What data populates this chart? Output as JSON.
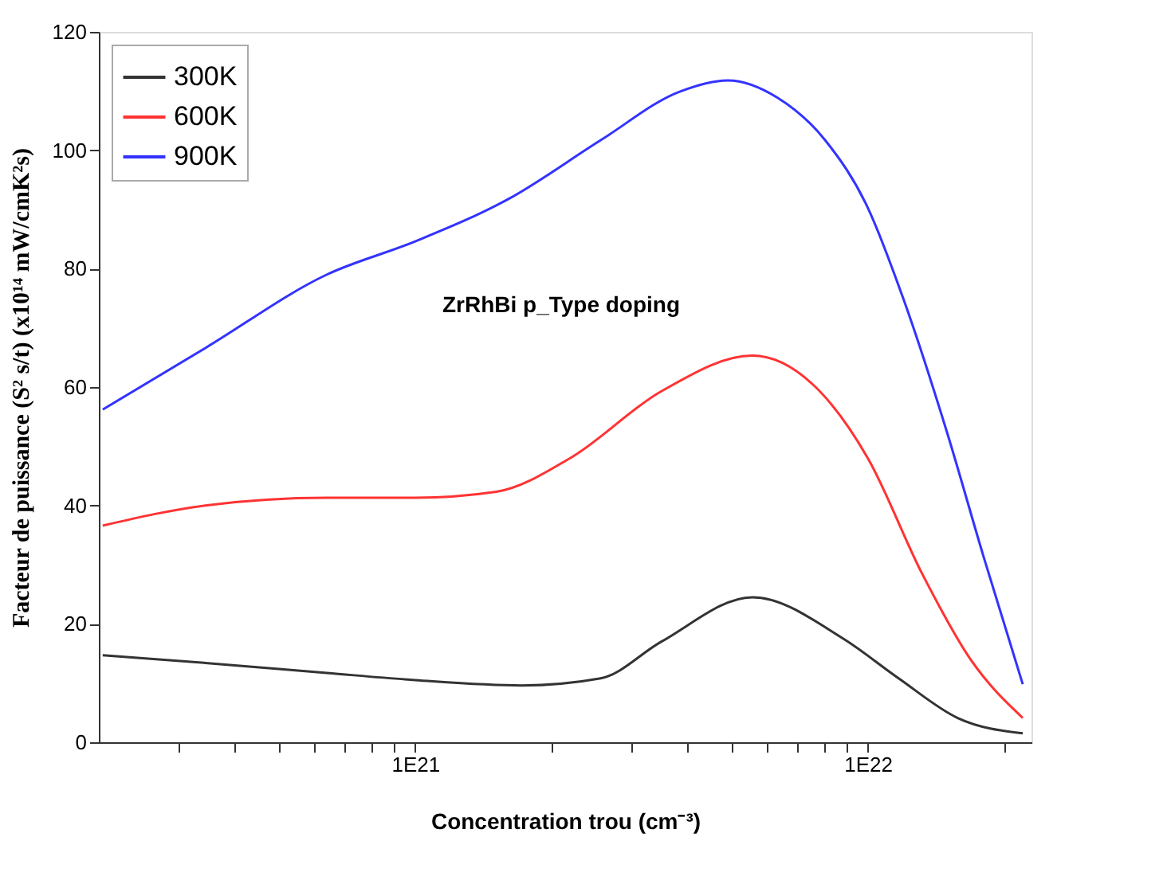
{
  "chart_data": {
    "type": "line",
    "xlabel": "Concentration trou (cm⁻³)",
    "ylabel": "Facteur de puissance (S² s/t) (x10¹⁴ mW/cmK²s)",
    "annotations": [
      "ZrRhBi p_Type doping"
    ],
    "log": "x",
    "xlim": [
      2e+20,
      2.3e+22
    ],
    "xticks": [
      {
        "value": 3e+20,
        "label": null
      },
      {
        "value": 4e+20,
        "label": null
      },
      {
        "value": 5e+20,
        "label": null
      },
      {
        "value": 6e+20,
        "label": null
      },
      {
        "value": 7e+20,
        "label": null
      },
      {
        "value": 8e+20,
        "label": null
      },
      {
        "value": 9e+20,
        "label": null
      },
      {
        "value": 1e+21,
        "label": "1E21"
      },
      {
        "value": 2e+21,
        "label": null
      },
      {
        "value": 3e+21,
        "label": null
      },
      {
        "value": 4e+21,
        "label": null
      },
      {
        "value": 5e+21,
        "label": null
      },
      {
        "value": 6e+21,
        "label": null
      },
      {
        "value": 7e+21,
        "label": null
      },
      {
        "value": 8e+21,
        "label": null
      },
      {
        "value": 9e+21,
        "label": null
      },
      {
        "value": 1e+22,
        "label": "1E22"
      },
      {
        "value": 2e+22,
        "label": null
      }
    ],
    "ylim": [
      0,
      120
    ],
    "yticks": [
      0,
      20,
      40,
      60,
      80,
      100,
      120
    ],
    "grid": false,
    "legend": "top left",
    "marker": "none",
    "line_style": "solid",
    "series": [
      {
        "name": "300K",
        "color": "#333333",
        "x": [
          2.04e+20,
          3.44e+20,
          6.38e+20,
          1e+21,
          1.72e+21,
          2.57e+21,
          3.5e+21,
          5.56e+21,
          8.83e+21,
          1.17e+22,
          1.58e+22,
          2.2e+22
        ],
        "values": [
          14.7,
          13.4,
          11.7,
          10.5,
          9.6,
          10.8,
          17,
          24.5,
          17.5,
          10.8,
          4.1,
          1.5
        ]
      },
      {
        "name": "600K",
        "color": "#ff3333",
        "x": [
          2.04e+20,
          3.44e+20,
          6.38e+20,
          1e+21,
          1.51e+21,
          2.2e+21,
          3.5e+21,
          5.56e+21,
          7.57e+21,
          1e+22,
          1.32e+22,
          1.69e+22,
          2.2e+22
        ],
        "values": [
          36.6,
          40,
          41.3,
          41.3,
          42.3,
          48,
          59.3,
          65.3,
          60.4,
          48,
          28.4,
          13.9,
          4.1
        ]
      },
      {
        "name": "900K",
        "color": "#3333ff",
        "x": [
          2.04e+20,
          3.44e+20,
          6.38e+20,
          1e+21,
          1.61e+21,
          2.57e+21,
          3.84e+21,
          4.9e+21,
          6.31e+21,
          8.05e+21,
          1e+22,
          1.2e+22,
          1.5e+22,
          1.8e+22,
          2.2e+22
        ],
        "values": [
          56.2,
          66.6,
          79,
          84.6,
          91.8,
          101.7,
          109.9,
          111.8,
          108.9,
          101.7,
          90.3,
          74.8,
          52.1,
          31.5,
          9.8
        ]
      }
    ]
  }
}
